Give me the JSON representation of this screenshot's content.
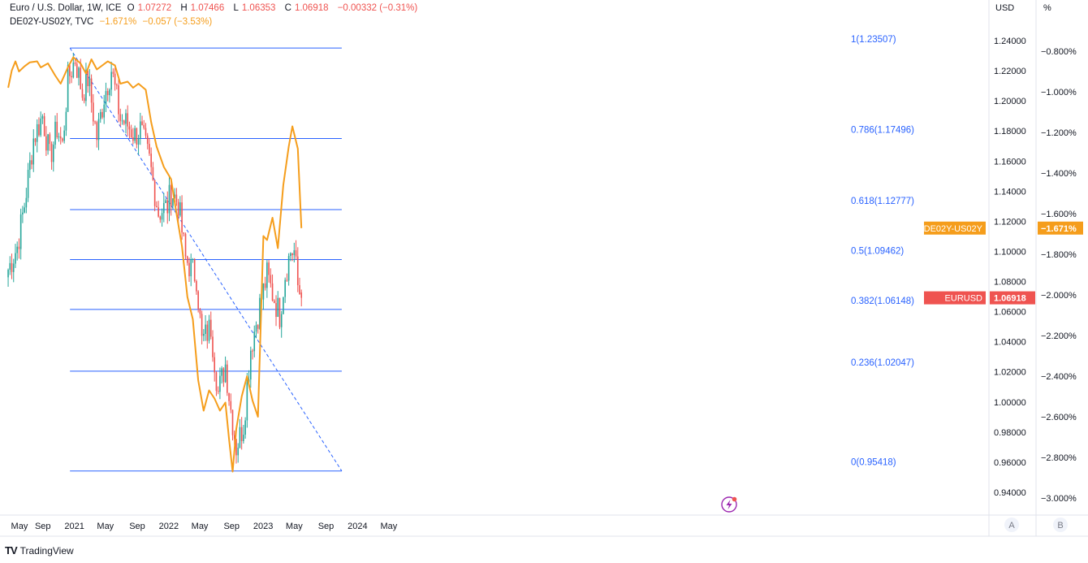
{
  "legend": {
    "main": {
      "title": "Euro / U.S. Dollar, 1W, ICE",
      "open_label": "O",
      "open": "1.07272",
      "high_label": "H",
      "high": "1.07466",
      "low_label": "L",
      "low": "1.06353",
      "close_label": "C",
      "close": "1.06918",
      "change": "−0.00332 (−0.31%)"
    },
    "overlay": {
      "title": "DE02Y-US02Y, TVC",
      "value": "−1.671%",
      "change": "−0.057 (−3.53%)"
    }
  },
  "axis_headers": {
    "left_scale": "USD",
    "right_scale": "%"
  },
  "footer": {
    "brand": "TradingView"
  },
  "scale_buttons": [
    "A",
    "B"
  ],
  "price_labels": {
    "eurusd": {
      "name": "EURUSD",
      "value": "1.06918",
      "color": "#ef5350"
    },
    "spread": {
      "name": "DE02Y-US02Y",
      "value": "−1.671%",
      "color": "#f59d1b"
    }
  },
  "colors": {
    "up": "#26a69a",
    "down": "#ef5350",
    "spread": "#f59d1b",
    "fib": "#2962ff",
    "trend": "#2962ff"
  },
  "chart_data": {
    "type": "line",
    "title": "Euro / U.S. Dollar, 1W, ICE",
    "x_ticks": [
      "May",
      "Sep",
      "2021",
      "May",
      "Sep",
      "2022",
      "May",
      "Sep",
      "2023",
      "May",
      "Sep",
      "2024",
      "May"
    ],
    "x_tick_dates": [
      "2020-05-01",
      "2020-09-01",
      "2021-01-01",
      "2021-05-01",
      "2021-09-01",
      "2022-01-01",
      "2022-05-01",
      "2022-09-01",
      "2023-01-01",
      "2023-05-01",
      "2023-09-01",
      "2024-01-01",
      "2024-05-01"
    ],
    "y_ticks_usd": [
      "1.24000",
      "1.22000",
      "1.20000",
      "1.18000",
      "1.16000",
      "1.14000",
      "1.12000",
      "1.10000",
      "1.08000",
      "1.06000",
      "1.04000",
      "1.02000",
      "1.00000",
      "0.98000",
      "0.96000",
      "0.94000"
    ],
    "y_ticks_pct": [
      "−0.800%",
      "−1.000%",
      "−1.200%",
      "−1.400%",
      "−1.600%",
      "−1.800%",
      "−2.000%",
      "−2.200%",
      "−2.400%",
      "−2.600%",
      "−2.800%",
      "−3.000%"
    ],
    "ylim_usd": [
      0.9305,
      1.266
    ],
    "ylim_pct": [
      -3.12,
      -0.54
    ],
    "fib_levels": [
      {
        "label": "1(1.23507)",
        "value": 1.23507
      },
      {
        "label": "0.786(1.17496)",
        "value": 1.17496
      },
      {
        "label": "0.618(1.12777)",
        "value": 1.12777
      },
      {
        "label": "0.5(1.09462)",
        "value": 1.09462
      },
      {
        "label": "0.382(1.06148)",
        "value": 1.06148
      },
      {
        "label": "0.236(1.02047)",
        "value": 1.02047
      },
      {
        "label": "0(0.95418)",
        "value": 0.95418
      }
    ],
    "fib_range": {
      "start": "2020-12-15",
      "end": "2023-11-01"
    },
    "trendline": [
      {
        "date": "2020-12-15",
        "price": 1.23507
      },
      {
        "date": "2023-11-01",
        "price": 0.95418
      }
    ],
    "series": [
      {
        "name": "EURUSD",
        "kind": "candlestick",
        "keypoints": [
          [
            "2020-04-20",
            1.088
          ],
          [
            "2020-05-25",
            1.103
          ],
          [
            "2020-06-22",
            1.131
          ],
          [
            "2020-07-27",
            1.175
          ],
          [
            "2020-08-31",
            1.19
          ],
          [
            "2020-09-28",
            1.162
          ],
          [
            "2020-10-26",
            1.182
          ],
          [
            "2020-11-16",
            1.17
          ],
          [
            "2020-12-07",
            1.214
          ],
          [
            "2021-01-04",
            1.228
          ],
          [
            "2021-02-01",
            1.205
          ],
          [
            "2021-02-22",
            1.215
          ],
          [
            "2021-03-29",
            1.176
          ],
          [
            "2021-04-26",
            1.203
          ],
          [
            "2021-05-24",
            1.221
          ],
          [
            "2021-06-28",
            1.188
          ],
          [
            "2021-07-26",
            1.184
          ],
          [
            "2021-08-23",
            1.177
          ],
          [
            "2021-09-13",
            1.181
          ],
          [
            "2021-10-18",
            1.16
          ],
          [
            "2021-11-22",
            1.126
          ],
          [
            "2021-12-27",
            1.13
          ],
          [
            "2022-01-10",
            1.14
          ],
          [
            "2022-02-07",
            1.132
          ],
          [
            "2022-03-07",
            1.095
          ],
          [
            "2022-04-18",
            1.083
          ],
          [
            "2022-05-09",
            1.04
          ],
          [
            "2022-06-13",
            1.05
          ],
          [
            "2022-07-11",
            1.006
          ],
          [
            "2022-08-08",
            1.025
          ],
          [
            "2022-08-29",
            0.995
          ],
          [
            "2022-09-19",
            0.97
          ],
          [
            "2022-10-17",
            0.985
          ],
          [
            "2022-11-14",
            1.036
          ],
          [
            "2022-12-19",
            1.064
          ],
          [
            "2023-01-16",
            1.084
          ],
          [
            "2023-02-06",
            1.072
          ],
          [
            "2023-03-06",
            1.058
          ],
          [
            "2023-03-27",
            1.085
          ],
          [
            "2023-04-17",
            1.1
          ],
          [
            "2023-05-01",
            1.1
          ],
          [
            "2023-05-15",
            1.077
          ],
          [
            "2023-05-29",
            1.069
          ]
        ],
        "last_candle": {
          "open": 1.07272,
          "high": 1.07466,
          "low": 1.06353,
          "close": 1.06918
        }
      },
      {
        "name": "DE02Y-US02Y",
        "kind": "line",
        "unit": "%",
        "points": [
          [
            "2020-04-20",
            -0.98
          ],
          [
            "2020-05-04",
            -0.895
          ],
          [
            "2020-05-18",
            -0.85
          ],
          [
            "2020-06-01",
            -0.9
          ],
          [
            "2020-06-22",
            -0.875
          ],
          [
            "2020-07-13",
            -0.855
          ],
          [
            "2020-08-10",
            -0.85
          ],
          [
            "2020-08-24",
            -0.88
          ],
          [
            "2020-09-21",
            -0.86
          ],
          [
            "2020-10-19",
            -0.92
          ],
          [
            "2020-11-09",
            -0.96
          ],
          [
            "2020-12-07",
            -0.88
          ],
          [
            "2020-12-28",
            -0.83
          ],
          [
            "2021-01-25",
            -0.86
          ],
          [
            "2021-02-15",
            -0.91
          ],
          [
            "2021-03-08",
            -0.84
          ],
          [
            "2021-03-29",
            -0.89
          ],
          [
            "2021-04-19",
            -0.87
          ],
          [
            "2021-05-10",
            -0.85
          ],
          [
            "2021-06-07",
            -0.87
          ],
          [
            "2021-06-28",
            -0.96
          ],
          [
            "2021-07-26",
            -0.95
          ],
          [
            "2021-08-16",
            -0.98
          ],
          [
            "2021-09-06",
            -0.96
          ],
          [
            "2021-10-04",
            -0.99
          ],
          [
            "2021-10-25",
            -1.15
          ],
          [
            "2021-11-15",
            -1.27
          ],
          [
            "2021-12-13",
            -1.37
          ],
          [
            "2022-01-10",
            -1.43
          ],
          [
            "2022-01-31",
            -1.6
          ],
          [
            "2022-02-21",
            -1.76
          ],
          [
            "2022-03-14",
            -2.01
          ],
          [
            "2022-04-04",
            -2.12
          ],
          [
            "2022-04-25",
            -2.42
          ],
          [
            "2022-05-16",
            -2.57
          ],
          [
            "2022-06-06",
            -2.47
          ],
          [
            "2022-06-27",
            -2.51
          ],
          [
            "2022-07-18",
            -2.57
          ],
          [
            "2022-08-08",
            -2.53
          ],
          [
            "2022-08-22",
            -2.71
          ],
          [
            "2022-09-05",
            -2.87
          ],
          [
            "2022-09-19",
            -2.66
          ],
          [
            "2022-10-10",
            -2.5
          ],
          [
            "2022-10-31",
            -2.4
          ],
          [
            "2022-11-21",
            -2.52
          ],
          [
            "2022-12-12",
            -2.6
          ],
          [
            "2023-01-02",
            -1.71
          ],
          [
            "2023-01-16",
            -1.73
          ],
          [
            "2023-02-06",
            -1.62
          ],
          [
            "2023-02-27",
            -1.77
          ],
          [
            "2023-03-20",
            -1.46
          ],
          [
            "2023-04-10",
            -1.27
          ],
          [
            "2023-04-24",
            -1.17
          ],
          [
            "2023-05-15",
            -1.28
          ],
          [
            "2023-05-29",
            -1.671
          ]
        ]
      }
    ]
  }
}
